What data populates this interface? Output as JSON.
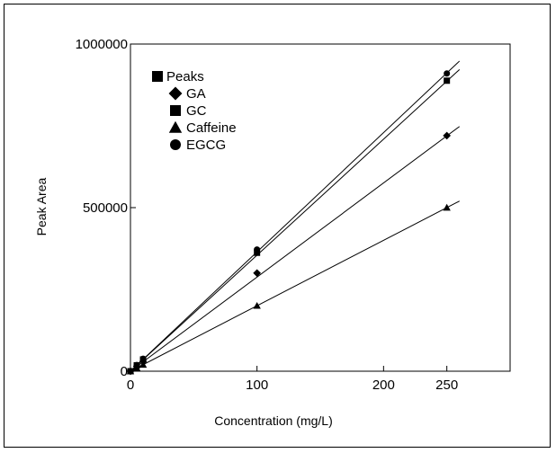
{
  "chart_data": {
    "type": "scatter",
    "xlabel": "Concentration (mg/L)",
    "ylabel": "Peak Area",
    "x_ticks": [
      {
        "value": 0,
        "label": "0"
      },
      {
        "value": 100,
        "label": "100"
      },
      {
        "value": 200,
        "label": "200"
      },
      {
        "value": 250,
        "label": "250"
      }
    ],
    "y_ticks": [
      {
        "value": 0,
        "label": "0"
      },
      {
        "value": 500000,
        "label": "500000"
      },
      {
        "value": 1000000,
        "label": "1000000"
      }
    ],
    "xlim": [
      0,
      300
    ],
    "ylim": [
      0,
      1000000
    ],
    "grid": false,
    "legend_placement": "top-left",
    "legend_title": "Peaks",
    "legend_title_marker": "square",
    "series": [
      {
        "name": "GA",
        "marker": "diamond",
        "x": [
          0,
          5,
          10,
          100,
          250
        ],
        "y": [
          0,
          15000,
          30000,
          300000,
          720000
        ],
        "fit": [
          [
            0,
            0
          ],
          [
            260,
            748000
          ]
        ]
      },
      {
        "name": "GC",
        "marker": "square",
        "x": [
          0,
          5,
          10,
          100,
          250
        ],
        "y": [
          0,
          18000,
          36000,
          362000,
          888000
        ],
        "fit": [
          [
            0,
            0
          ],
          [
            260,
            922000
          ]
        ]
      },
      {
        "name": "Caffeine",
        "marker": "triangle",
        "x": [
          0,
          5,
          10,
          100,
          250
        ],
        "y": [
          0,
          10000,
          20000,
          200000,
          500000
        ],
        "fit": [
          [
            0,
            0
          ],
          [
            260,
            520000
          ]
        ]
      },
      {
        "name": "EGCG",
        "marker": "circle",
        "x": [
          0,
          5,
          10,
          100,
          250
        ],
        "y": [
          0,
          19000,
          38000,
          372000,
          910000
        ],
        "fit": [
          [
            0,
            0
          ],
          [
            260,
            948000
          ]
        ]
      }
    ]
  }
}
